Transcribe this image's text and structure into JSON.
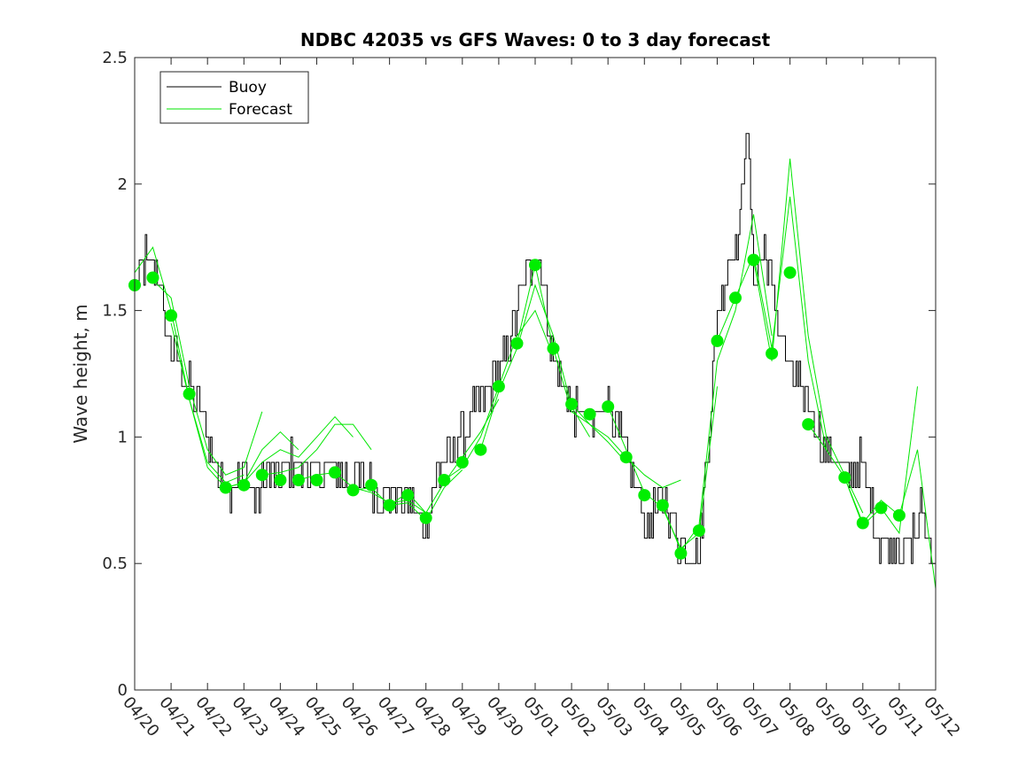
{
  "chart_data": {
    "type": "line",
    "title": "NDBC 42035 vs GFS Waves: 0 to 3 day forecast",
    "xlabel": "",
    "ylabel": "Wave height, m",
    "xlim": [
      0,
      22
    ],
    "ylim": [
      0,
      2.5
    ],
    "y_ticks": [
      0,
      0.5,
      1,
      1.5,
      2,
      2.5
    ],
    "y_tick_labels": [
      "0",
      "0.5",
      "1",
      "1.5",
      "2",
      "2.5"
    ],
    "x_ticks": [
      0,
      1,
      2,
      3,
      4,
      5,
      6,
      7,
      8,
      9,
      10,
      11,
      12,
      13,
      14,
      15,
      16,
      17,
      18,
      19,
      20,
      21,
      22
    ],
    "x_tick_labels": [
      "04/20",
      "04/21",
      "04/22",
      "04/23",
      "04/24",
      "04/25",
      "04/26",
      "04/27",
      "04/28",
      "04/29",
      "04/30",
      "05/01",
      "05/02",
      "05/03",
      "05/04",
      "05/05",
      "05/06",
      "05/07",
      "05/08",
      "05/09",
      "05/10",
      "05/11",
      "05/12"
    ],
    "legend": {
      "placement": "top-left",
      "entries": [
        {
          "label": "Buoy",
          "color": "#000000"
        },
        {
          "label": "Forecast",
          "color": "#00e600"
        }
      ]
    },
    "colors": {
      "buoy": "#000000",
      "forecast": "#00e600",
      "marker": "#00ee00"
    },
    "buoy_anchors": [
      [
        0,
        1.6
      ],
      [
        0.3,
        1.7
      ],
      [
        0.6,
        1.65
      ],
      [
        0.9,
        1.4
      ],
      [
        1.2,
        1.3
      ],
      [
        1.5,
        1.2
      ],
      [
        1.8,
        1.1
      ],
      [
        2.0,
        1.0
      ],
      [
        2.3,
        0.85
      ],
      [
        2.6,
        0.8
      ],
      [
        3.0,
        0.85
      ],
      [
        3.3,
        0.75
      ],
      [
        3.6,
        0.85
      ],
      [
        4.0,
        0.85
      ],
      [
        4.3,
        0.9
      ],
      [
        4.6,
        0.88
      ],
      [
        5.0,
        0.85
      ],
      [
        5.3,
        0.88
      ],
      [
        5.6,
        0.85
      ],
      [
        6.0,
        0.85
      ],
      [
        6.4,
        0.82
      ],
      [
        6.8,
        0.78
      ],
      [
        7.2,
        0.78
      ],
      [
        7.6,
        0.75
      ],
      [
        8.0,
        0.65
      ],
      [
        8.3,
        0.85
      ],
      [
        8.6,
        0.9
      ],
      [
        9.0,
        1.0
      ],
      [
        9.3,
        1.1
      ],
      [
        9.6,
        1.15
      ],
      [
        10.0,
        1.25
      ],
      [
        10.3,
        1.4
      ],
      [
        10.6,
        1.55
      ],
      [
        11.0,
        1.75
      ],
      [
        11.2,
        1.6
      ],
      [
        11.5,
        1.3
      ],
      [
        11.8,
        1.2
      ],
      [
        12.0,
        1.1
      ],
      [
        12.3,
        1.1
      ],
      [
        12.6,
        1.05
      ],
      [
        13.0,
        1.15
      ],
      [
        13.3,
        1.0
      ],
      [
        13.6,
        0.85
      ],
      [
        13.9,
        0.75
      ],
      [
        14.1,
        0.65
      ],
      [
        14.4,
        0.75
      ],
      [
        14.7,
        0.7
      ],
      [
        15.0,
        0.55
      ],
      [
        15.5,
        0.55
      ],
      [
        15.8,
        1.1
      ],
      [
        16.0,
        1.5
      ],
      [
        16.3,
        1.7
      ],
      [
        16.6,
        1.75
      ],
      [
        16.8,
        2.3
      ],
      [
        17.0,
        1.6
      ],
      [
        17.3,
        1.75
      ],
      [
        17.6,
        1.5
      ],
      [
        17.9,
        1.3
      ],
      [
        18.2,
        1.2
      ],
      [
        18.5,
        1.15
      ],
      [
        18.8,
        1.0
      ],
      [
        19.2,
        0.9
      ],
      [
        19.6,
        0.85
      ],
      [
        19.9,
        0.9
      ],
      [
        20.1,
        0.8
      ],
      [
        20.4,
        0.6
      ],
      [
        20.8,
        0.6
      ],
      [
        21.2,
        0.55
      ],
      [
        21.6,
        0.7
      ],
      [
        22.0,
        0.5
      ]
    ],
    "forecast_markers": [
      [
        0,
        1.6
      ],
      [
        0.5,
        1.63
      ],
      [
        1.0,
        1.48
      ],
      [
        1.5,
        1.17
      ],
      [
        2.5,
        0.8
      ],
      [
        3.0,
        0.81
      ],
      [
        3.5,
        0.85
      ],
      [
        4.0,
        0.83
      ],
      [
        4.5,
        0.83
      ],
      [
        5.0,
        0.83
      ],
      [
        5.5,
        0.86
      ],
      [
        6.0,
        0.79
      ],
      [
        6.5,
        0.81
      ],
      [
        7.0,
        0.73
      ],
      [
        7.5,
        0.77
      ],
      [
        8.0,
        0.68
      ],
      [
        8.5,
        0.83
      ],
      [
        9.0,
        0.9
      ],
      [
        9.5,
        0.95
      ],
      [
        10.0,
        1.2
      ],
      [
        10.5,
        1.37
      ],
      [
        11.0,
        1.68
      ],
      [
        11.5,
        1.35
      ],
      [
        12.0,
        1.13
      ],
      [
        12.5,
        1.09
      ],
      [
        13.0,
        1.12
      ],
      [
        13.5,
        0.92
      ],
      [
        14.0,
        0.77
      ],
      [
        14.5,
        0.73
      ],
      [
        15.0,
        0.54
      ],
      [
        15.5,
        0.63
      ],
      [
        16.0,
        1.38
      ],
      [
        16.5,
        1.55
      ],
      [
        17.0,
        1.7
      ],
      [
        17.5,
        1.33
      ],
      [
        18.0,
        1.65
      ],
      [
        18.5,
        1.05
      ],
      [
        19.5,
        0.84
      ],
      [
        20.0,
        0.66
      ],
      [
        20.5,
        0.72
      ],
      [
        21.0,
        0.69
      ]
    ],
    "forecast_runs": [
      [
        [
          0,
          1.65
        ],
        [
          0.5,
          1.75
        ],
        [
          1.0,
          1.5
        ],
        [
          1.5,
          1.15
        ],
        [
          2.0,
          0.9
        ],
        [
          2.5,
          0.82
        ],
        [
          3.0,
          0.85
        ]
      ],
      [
        [
          0.5,
          1.62
        ],
        [
          1.0,
          1.55
        ],
        [
          1.5,
          1.2
        ],
        [
          2.0,
          0.95
        ],
        [
          2.5,
          0.85
        ],
        [
          3.0,
          0.88
        ],
        [
          3.5,
          1.1
        ]
      ],
      [
        [
          1.0,
          1.45
        ],
        [
          1.5,
          1.15
        ],
        [
          2.0,
          0.88
        ],
        [
          2.5,
          0.8
        ],
        [
          3.0,
          0.82
        ],
        [
          3.5,
          0.95
        ],
        [
          4.0,
          1.02
        ],
        [
          4.5,
          0.95
        ]
      ],
      [
        [
          2.5,
          0.8
        ],
        [
          3.0,
          0.82
        ],
        [
          3.5,
          0.9
        ],
        [
          4.0,
          0.95
        ],
        [
          4.5,
          0.92
        ],
        [
          5.0,
          1.0
        ],
        [
          5.5,
          1.08
        ],
        [
          6.0,
          1.0
        ]
      ],
      [
        [
          3.5,
          0.85
        ],
        [
          4.0,
          0.86
        ],
        [
          4.5,
          0.88
        ],
        [
          5.0,
          0.95
        ],
        [
          5.5,
          1.05
        ],
        [
          6.0,
          1.05
        ],
        [
          6.5,
          0.95
        ]
      ],
      [
        [
          4.5,
          0.83
        ],
        [
          5.0,
          0.85
        ],
        [
          5.5,
          0.86
        ],
        [
          6.0,
          0.8
        ],
        [
          6.5,
          0.78
        ],
        [
          7.0,
          0.74
        ],
        [
          7.5,
          0.75
        ],
        [
          8.0,
          0.7
        ]
      ],
      [
        [
          6.0,
          0.79
        ],
        [
          6.5,
          0.8
        ],
        [
          7.0,
          0.73
        ],
        [
          7.5,
          0.74
        ],
        [
          8.0,
          0.67
        ],
        [
          8.5,
          0.8
        ],
        [
          9.0,
          0.87
        ]
      ],
      [
        [
          7.0,
          0.73
        ],
        [
          7.5,
          0.78
        ],
        [
          8.0,
          0.7
        ],
        [
          8.5,
          0.82
        ],
        [
          9.0,
          0.92
        ],
        [
          9.5,
          1.02
        ],
        [
          10.0,
          1.15
        ]
      ],
      [
        [
          8.5,
          0.83
        ],
        [
          9.0,
          0.88
        ],
        [
          9.5,
          1.0
        ],
        [
          10.0,
          1.2
        ],
        [
          10.5,
          1.4
        ],
        [
          11.0,
          1.5
        ],
        [
          11.5,
          1.32
        ]
      ],
      [
        [
          9.5,
          0.95
        ],
        [
          10.0,
          1.18
        ],
        [
          10.5,
          1.35
        ],
        [
          11.0,
          1.6
        ],
        [
          11.5,
          1.4
        ],
        [
          12.0,
          1.12
        ],
        [
          12.5,
          1.0
        ]
      ],
      [
        [
          10.5,
          1.37
        ],
        [
          11.0,
          1.68
        ],
        [
          11.5,
          1.35
        ],
        [
          12.0,
          1.1
        ],
        [
          12.5,
          1.05
        ],
        [
          13.0,
          0.98
        ],
        [
          13.5,
          0.9
        ]
      ],
      [
        [
          12.0,
          1.13
        ],
        [
          12.5,
          1.05
        ],
        [
          13.0,
          1.0
        ],
        [
          13.5,
          0.92
        ],
        [
          14.0,
          0.85
        ],
        [
          14.5,
          0.8
        ],
        [
          15.0,
          0.83
        ]
      ],
      [
        [
          13.0,
          1.12
        ],
        [
          13.5,
          0.95
        ],
        [
          14.0,
          0.78
        ],
        [
          14.5,
          0.72
        ],
        [
          15.0,
          0.56
        ],
        [
          15.5,
          0.62
        ],
        [
          16.0,
          1.2
        ]
      ],
      [
        [
          14.5,
          0.73
        ],
        [
          15.0,
          0.55
        ],
        [
          15.5,
          0.65
        ],
        [
          16.0,
          1.3
        ],
        [
          16.5,
          1.5
        ],
        [
          17.0,
          1.88
        ],
        [
          17.5,
          1.4
        ]
      ],
      [
        [
          16.0,
          1.38
        ],
        [
          16.5,
          1.55
        ],
        [
          17.0,
          1.72
        ],
        [
          17.5,
          1.35
        ],
        [
          18.0,
          1.95
        ],
        [
          18.5,
          1.3
        ],
        [
          19.0,
          0.95
        ]
      ],
      [
        [
          17.0,
          1.7
        ],
        [
          17.5,
          1.3
        ],
        [
          18.0,
          2.1
        ],
        [
          18.5,
          1.4
        ],
        [
          19.0,
          1.0
        ],
        [
          19.5,
          0.85
        ],
        [
          20.0,
          0.7
        ]
      ],
      [
        [
          18.5,
          1.05
        ],
        [
          19.0,
          0.95
        ],
        [
          19.5,
          0.84
        ],
        [
          20.0,
          0.65
        ],
        [
          20.5,
          0.72
        ],
        [
          21.0,
          0.62
        ],
        [
          21.5,
          1.2
        ]
      ],
      [
        [
          19.5,
          0.84
        ],
        [
          20.0,
          0.66
        ],
        [
          20.5,
          0.75
        ],
        [
          21.0,
          0.69
        ],
        [
          21.5,
          0.95
        ],
        [
          22.0,
          0.4
        ]
      ]
    ]
  }
}
